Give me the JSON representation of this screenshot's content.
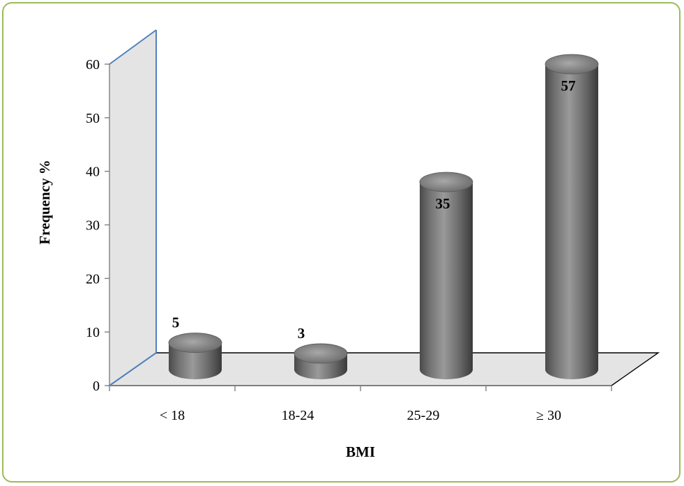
{
  "chart_data": {
    "type": "bar",
    "categories": [
      "< 18",
      "18-24",
      "25-29",
      "≥ 30"
    ],
    "values": [
      5,
      3,
      35,
      57
    ],
    "title": "",
    "xlabel": "BMI",
    "ylabel": "Frequency %",
    "ylim": [
      0,
      60
    ],
    "yticks": [
      "0",
      "10",
      "20",
      "30",
      "40",
      "50",
      "60"
    ],
    "grid": false,
    "legend": "none",
    "style": "3d-cylinder",
    "colors": {
      "bar": "#777777",
      "bar_dark": "#3c3c3c",
      "bar_light": "#b4b4b4",
      "wall": "#e4e4e4",
      "wall_edge": "#4f81bd",
      "frame": "#9bbb59"
    }
  }
}
